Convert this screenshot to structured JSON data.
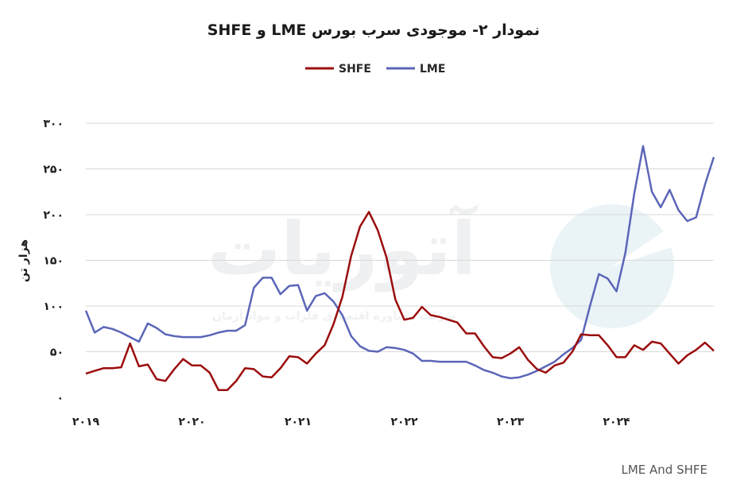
{
  "chart_data": {
    "type": "line",
    "title": "نمودار ۲- موجودی سرب بورس LME و SHFE",
    "ylabel": "هزار تن",
    "xlabel": "",
    "ylim": [
      0,
      300
    ],
    "yticks": [
      "۰",
      "۵۰",
      "۱۰۰",
      "۱۵۰",
      "۲۰۰",
      "۲۵۰",
      "۳۰۰"
    ],
    "xticks": [
      "۲۰۱۹",
      "۲۰۲۰",
      "۲۰۲۱",
      "۲۰۲۲",
      "۲۰۲۳",
      "۲۰۲۴"
    ],
    "grid": true,
    "legend_position": "top",
    "source": "LME And SHFE",
    "watermark": "آتوریات",
    "watermark_sub": "شرکت مشاوره اقتصادی فلزات و مواد آرمان",
    "series": [
      {
        "name": "SHFE",
        "color": "#9b0d0d",
        "values": [
          26,
          29,
          32,
          32,
          33,
          59,
          34,
          36,
          20,
          18,
          31,
          42,
          35,
          35,
          27,
          8,
          8,
          18,
          32,
          31,
          23,
          22,
          32,
          45,
          44,
          37,
          48,
          57,
          80,
          110,
          155,
          187,
          203,
          183,
          153,
          107,
          85,
          87,
          99,
          90,
          88,
          85,
          82,
          70,
          70,
          56,
          44,
          43,
          48,
          55,
          41,
          31,
          27,
          35,
          38,
          50,
          69,
          68,
          68,
          57,
          44,
          44,
          57,
          52,
          61,
          59,
          48,
          37,
          46,
          52,
          60,
          51
        ]
      },
      {
        "name": "LME",
        "color": "#5b66b8",
        "values": [
          95,
          71,
          77,
          75,
          71,
          66,
          61,
          81,
          76,
          69,
          67,
          66,
          66,
          66,
          68,
          71,
          73,
          73,
          79,
          120,
          131,
          131,
          113,
          122,
          123,
          95,
          111,
          114,
          105,
          90,
          67,
          56,
          51,
          50,
          55,
          54,
          52,
          48,
          40,
          40,
          39,
          39,
          39,
          39,
          35,
          30,
          27,
          23,
          21,
          22,
          25,
          29,
          34,
          39,
          47,
          54,
          63,
          100,
          135,
          130,
          116,
          158,
          223,
          275,
          225,
          208,
          227,
          205,
          193,
          197,
          233,
          263
        ]
      }
    ]
  }
}
